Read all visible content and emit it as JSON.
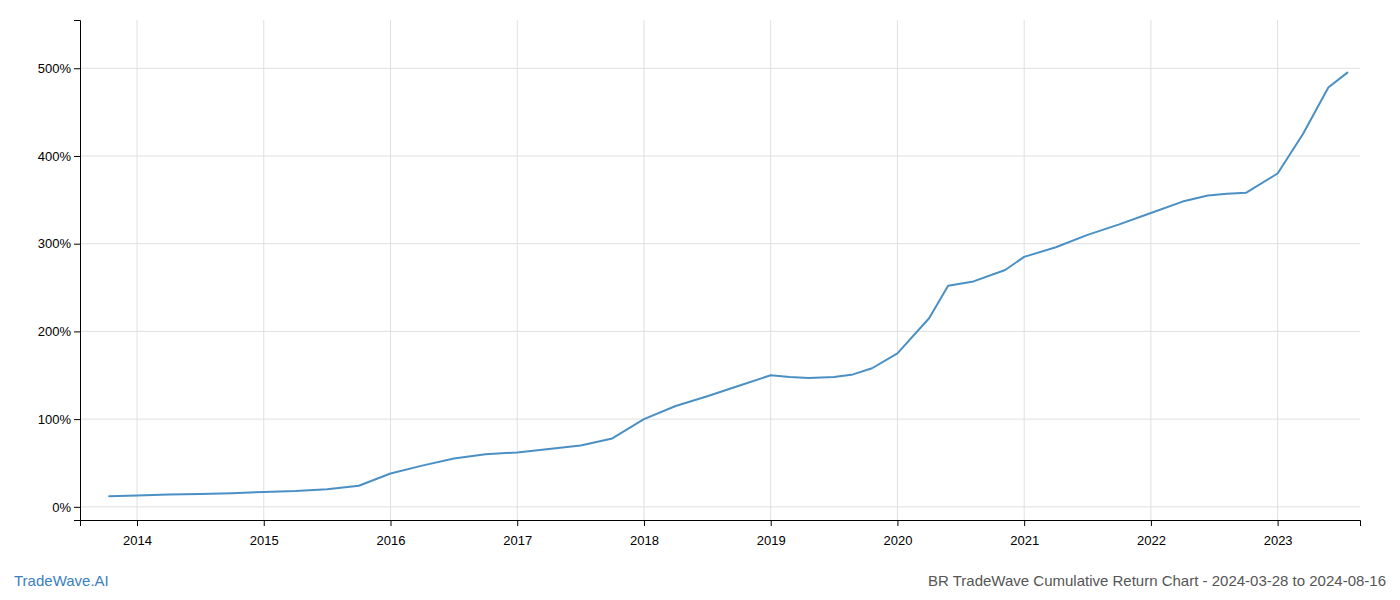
{
  "chart_data": {
    "type": "line",
    "title": "BR TradeWave Cumulative Return Chart - 2024-03-28 to 2024-08-16",
    "annotations": [
      "TradeWave.AI"
    ],
    "color": "#4a90c4",
    "grid": true,
    "x": [
      2013.78,
      2014.0,
      2014.25,
      2014.5,
      2014.75,
      2015.0,
      2015.25,
      2015.5,
      2015.75,
      2016.0,
      2016.25,
      2016.5,
      2016.75,
      2017.0,
      2017.25,
      2017.5,
      2017.75,
      2018.0,
      2018.25,
      2018.5,
      2018.75,
      2019.0,
      2019.15,
      2019.3,
      2019.5,
      2019.65,
      2019.8,
      2020.0,
      2020.25,
      2020.4,
      2020.6,
      2020.85,
      2021.0,
      2021.25,
      2021.5,
      2021.75,
      2022.0,
      2022.25,
      2022.45,
      2022.6,
      2022.75,
      2023.0,
      2023.2,
      2023.4,
      2023.55
    ],
    "values": [
      12,
      13,
      14,
      14.5,
      15.5,
      17,
      18,
      20,
      24,
      38,
      47,
      55,
      60,
      62,
      66,
      70,
      78,
      100,
      115,
      126,
      138,
      150,
      148,
      147,
      148,
      151,
      158,
      175,
      215,
      252,
      257,
      270,
      285,
      296,
      310,
      322,
      335,
      348,
      355,
      357,
      358,
      380,
      425,
      478,
      495
    ],
    "xlim": [
      2013.55,
      2023.65
    ],
    "xticks": [
      2014,
      2015,
      2016,
      2017,
      2018,
      2019,
      2020,
      2021,
      2022,
      2023
    ],
    "ylim": [
      -15,
      555
    ],
    "yticks": [
      {
        "value": 0,
        "label": "0%"
      },
      {
        "value": 100,
        "label": "100%"
      },
      {
        "value": 200,
        "label": "200%"
      },
      {
        "value": 300,
        "label": "300%"
      },
      {
        "value": 400,
        "label": "400%"
      },
      {
        "value": 500,
        "label": "500%"
      }
    ]
  }
}
